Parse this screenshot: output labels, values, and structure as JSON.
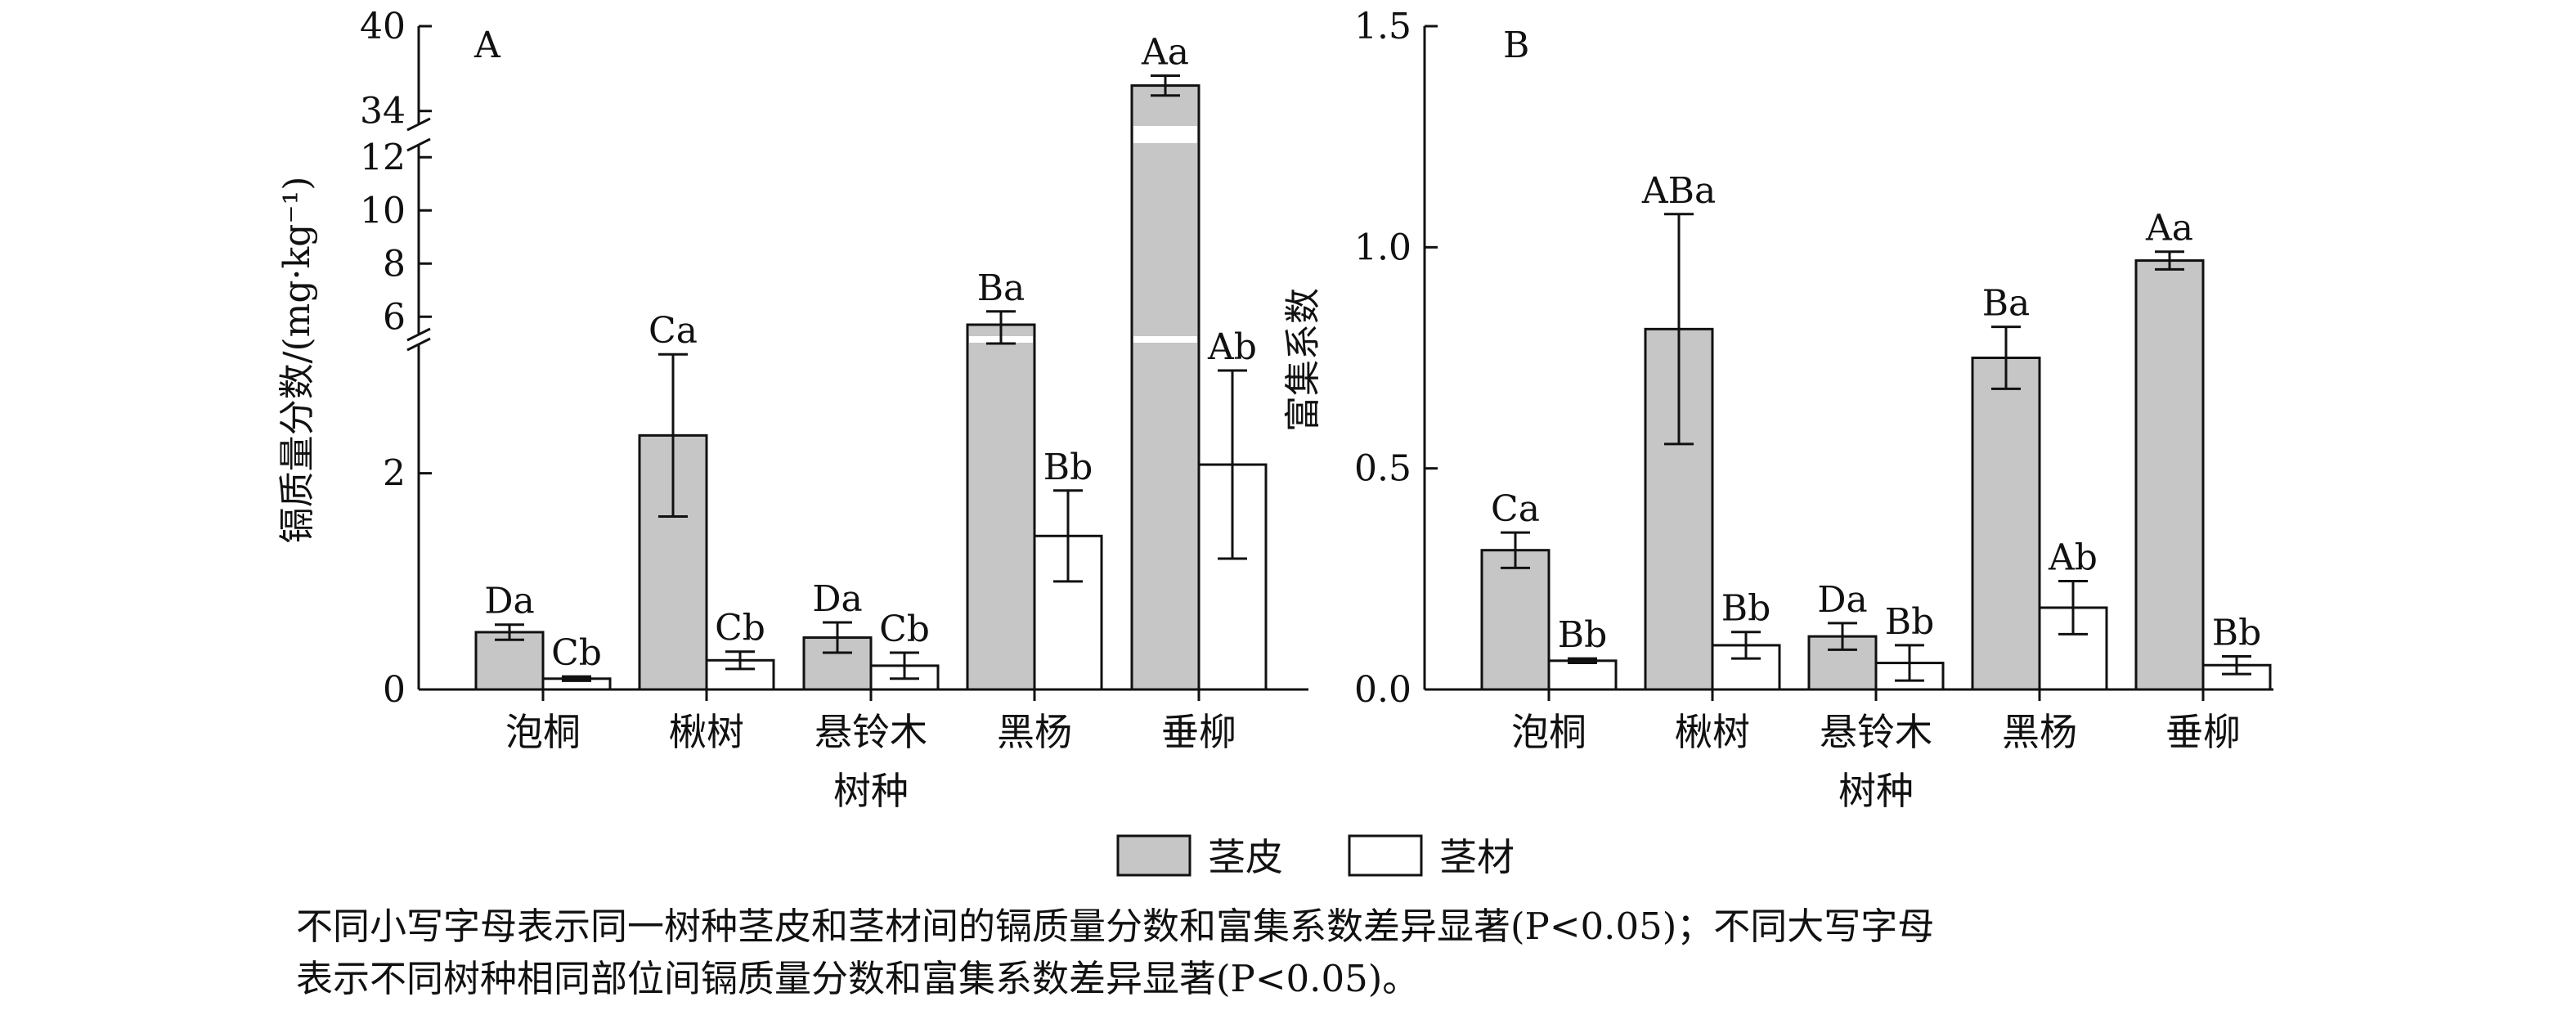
{
  "chart_data": [
    {
      "panel": "A",
      "type": "bar",
      "ylabel": "镉质量分数/(mg·kg⁻¹)",
      "xlabel": "树种",
      "categories": [
        "泡桐",
        "楸树",
        "悬铃木",
        "黑杨",
        "垂柳"
      ],
      "axis_break": {
        "segments": [
          [
            0,
            3.2
          ],
          [
            5.3,
            12.5
          ],
          [
            33,
            40
          ]
        ]
      },
      "yticks": [
        0,
        2,
        6,
        8,
        10,
        12,
        34,
        40
      ],
      "series": [
        {
          "name": "茎皮",
          "color": "#c6c6c6",
          "values": [
            0.53,
            2.35,
            0.48,
            5.7,
            35.8
          ],
          "errors": [
            0.07,
            0.75,
            0.14,
            0.5,
            0.7
          ],
          "labels": [
            "Da",
            "Ca",
            "Da",
            "Ba",
            "Aa"
          ]
        },
        {
          "name": "茎材",
          "color": "#ffffff",
          "values": [
            0.1,
            0.27,
            0.22,
            1.42,
            2.08
          ],
          "errors": [
            0.02,
            0.08,
            0.12,
            0.42,
            0.87
          ],
          "labels": [
            "Cb",
            "Cb",
            "Cb",
            "Bb",
            "Ab"
          ]
        }
      ]
    },
    {
      "panel": "B",
      "type": "bar",
      "ylabel": "富集系数",
      "xlabel": "树种",
      "categories": [
        "泡桐",
        "楸树",
        "悬铃木",
        "黑杨",
        "垂柳"
      ],
      "ylim": [
        0,
        1.5
      ],
      "yticks": [
        0,
        0.5,
        1.0,
        1.5
      ],
      "series": [
        {
          "name": "茎皮",
          "color": "#c6c6c6",
          "values": [
            0.315,
            0.815,
            0.12,
            0.75,
            0.97
          ],
          "errors": [
            0.04,
            0.26,
            0.03,
            0.07,
            0.02
          ],
          "labels": [
            "Ca",
            "ABa",
            "Da",
            "Ba",
            "Aa"
          ]
        },
        {
          "name": "茎材",
          "color": "#ffffff",
          "values": [
            0.065,
            0.1,
            0.06,
            0.185,
            0.055
          ],
          "errors": [
            0.005,
            0.03,
            0.04,
            0.06,
            0.02
          ],
          "labels": [
            "Bb",
            "Bb",
            "Bb",
            "Ab",
            "Bb"
          ]
        }
      ]
    }
  ],
  "legend": [
    {
      "label": "茎皮",
      "color": "#c6c6c6"
    },
    {
      "label": "茎材",
      "color": "#ffffff"
    }
  ],
  "caption": {
    "line1": "不同小写字母表示同一树种茎皮和茎材间的镉质量分数和富集系数差异显著(P<0.05)；不同大写字母",
    "line2": "表示不同树种相同部位间镉质量分数和富集系数差异显著(P<0.05)。"
  }
}
